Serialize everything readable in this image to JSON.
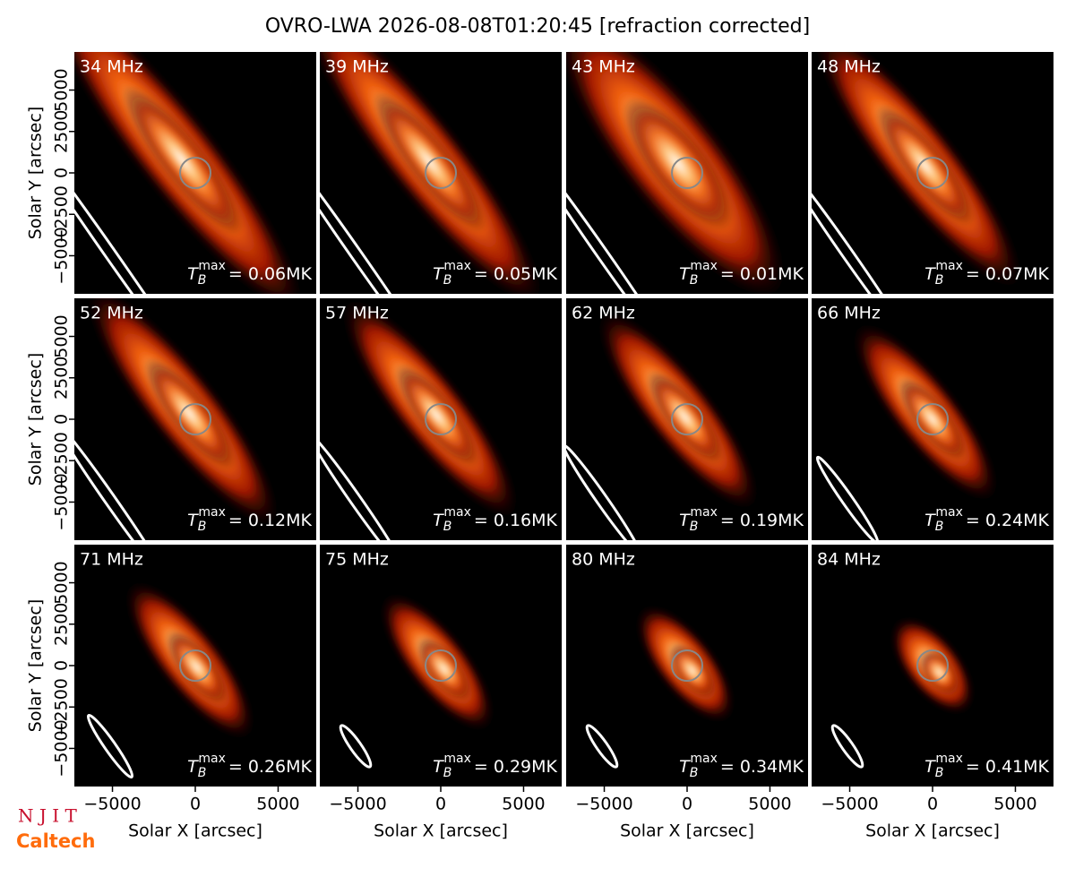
{
  "chart_data": {
    "type": "imagegrid",
    "title": "OVRO-LWA 2026-08-08T01:20:45 [refraction corrected]",
    "xlabel": "Solar X [arcsec]",
    "ylabel": "Solar Y [arcsec]",
    "xlim": [
      -7300,
      7300
    ],
    "ylim": [
      -7300,
      7300
    ],
    "xticks": [
      {
        "value": -5000,
        "label": "−5000"
      },
      0,
      5000
    ],
    "yticks": [
      {
        "value": -5000,
        "label": "−5000"
      },
      {
        "value": -2500,
        "label": "−2500"
      },
      0,
      2500,
      5000
    ],
    "tb_symbol": "T",
    "tb_sub": "B",
    "tb_sup": "max",
    "panels": [
      {
        "freq": "34 MHz",
        "tb": "= 0.06MK"
      },
      {
        "freq": "39 MHz",
        "tb": "= 0.05MK"
      },
      {
        "freq": "43 MHz",
        "tb": "= 0.01MK"
      },
      {
        "freq": "48 MHz",
        "tb": "= 0.07MK"
      },
      {
        "freq": "52 MHz",
        "tb": "= 0.12MK"
      },
      {
        "freq": "57 MHz",
        "tb": "= 0.16MK"
      },
      {
        "freq": "62 MHz",
        "tb": "= 0.19MK"
      },
      {
        "freq": "66 MHz",
        "tb": "= 0.24MK"
      },
      {
        "freq": "71 MHz",
        "tb": "= 0.26MK"
      },
      {
        "freq": "75 MHz",
        "tb": "= 0.29MK"
      },
      {
        "freq": "80 MHz",
        "tb": "= 0.34MK"
      },
      {
        "freq": "84 MHz",
        "tb": "= 0.41MK"
      }
    ],
    "logos": [
      "N J I T",
      "Caltech"
    ]
  }
}
